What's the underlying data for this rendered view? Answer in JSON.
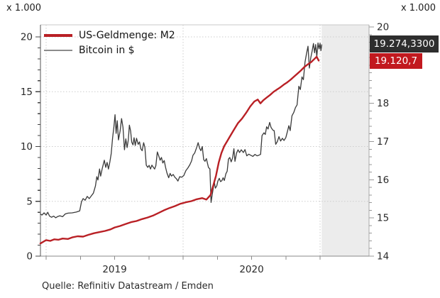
{
  "units": {
    "left": "x 1.000",
    "right": "x 1.000"
  },
  "legend": [
    {
      "label": "US-Geldmenge: M2",
      "swatch_color": "#b92025",
      "swatch_thickness": 4
    },
    {
      "label": "Bitcoin in $",
      "swatch_color": "#8c8c8c",
      "swatch_thickness": 2
    }
  ],
  "badges": [
    {
      "series": "Bitcoin in $",
      "value": "19.274,3300",
      "bg": "#2e2e2e"
    },
    {
      "series": "US-Geldmenge: M2",
      "value": "19.120,7",
      "bg": "#c2191f"
    }
  ],
  "source": "Quelle: Refinitiv Datastream / Emden",
  "chart_data": {
    "type": "line",
    "title": "",
    "x_axis": {
      "year_labels": [
        {
          "label": "2019",
          "t_center": 2019.5
        },
        {
          "label": "2020",
          "t_center": 2020.5
        }
      ],
      "year_starts": [
        2019,
        2020,
        2021
      ],
      "quarter_tick_step": 0.25,
      "range": [
        2018.958,
        2021.36
      ]
    },
    "left_axis": {
      "unit": "x 1.000",
      "series": "Bitcoin in $",
      "range": [
        0,
        20
      ],
      "major_ticks": [
        0,
        5,
        10,
        15,
        20
      ],
      "grid_values": [
        5,
        10,
        15,
        20
      ],
      "minor_step": 1
    },
    "right_axis": {
      "unit": "x 1.000",
      "series": "US-Geldmenge: M2",
      "range": [
        14,
        20
      ],
      "major_ticks": [
        14,
        15,
        16,
        17,
        18,
        19,
        20
      ],
      "minor_step": 0.2
    },
    "plot": {
      "grid_color": "#cdcdcd",
      "shade_color": "#ececec",
      "no_data_shade_from": 2021.012
    },
    "series": [
      {
        "name": "US-Geldmenge: M2",
        "axis": "right",
        "color": "#b92025",
        "width": 2.4,
        "data_name": "m2-series-line",
        "last_value_label": "19.120,7",
        "points": [
          [
            2018.958,
            14.33
          ],
          [
            2019.0,
            14.42
          ],
          [
            2019.03,
            14.4
          ],
          [
            2019.06,
            14.44
          ],
          [
            2019.09,
            14.43
          ],
          [
            2019.12,
            14.46
          ],
          [
            2019.16,
            14.45
          ],
          [
            2019.19,
            14.49
          ],
          [
            2019.23,
            14.52
          ],
          [
            2019.27,
            14.51
          ],
          [
            2019.31,
            14.56
          ],
          [
            2019.35,
            14.6
          ],
          [
            2019.39,
            14.63
          ],
          [
            2019.43,
            14.66
          ],
          [
            2019.47,
            14.7
          ],
          [
            2019.5,
            14.75
          ],
          [
            2019.54,
            14.79
          ],
          [
            2019.58,
            14.84
          ],
          [
            2019.62,
            14.89
          ],
          [
            2019.66,
            14.92
          ],
          [
            2019.7,
            14.97
          ],
          [
            2019.74,
            15.01
          ],
          [
            2019.78,
            15.06
          ],
          [
            2019.82,
            15.13
          ],
          [
            2019.86,
            15.2
          ],
          [
            2019.9,
            15.26
          ],
          [
            2019.94,
            15.31
          ],
          [
            2019.98,
            15.37
          ],
          [
            2020.02,
            15.41
          ],
          [
            2020.06,
            15.44
          ],
          [
            2020.1,
            15.49
          ],
          [
            2020.14,
            15.52
          ],
          [
            2020.17,
            15.48
          ],
          [
            2020.2,
            15.6
          ],
          [
            2020.22,
            15.85
          ],
          [
            2020.24,
            16.1
          ],
          [
            2020.26,
            16.45
          ],
          [
            2020.28,
            16.7
          ],
          [
            2020.3,
            16.88
          ],
          [
            2020.32,
            17.0
          ],
          [
            2020.34,
            17.12
          ],
          [
            2020.37,
            17.3
          ],
          [
            2020.4,
            17.48
          ],
          [
            2020.43,
            17.6
          ],
          [
            2020.46,
            17.75
          ],
          [
            2020.49,
            17.92
          ],
          [
            2020.52,
            18.05
          ],
          [
            2020.545,
            18.1
          ],
          [
            2020.565,
            18.0
          ],
          [
            2020.585,
            18.08
          ],
          [
            2020.61,
            18.15
          ],
          [
            2020.635,
            18.22
          ],
          [
            2020.66,
            18.3
          ],
          [
            2020.685,
            18.36
          ],
          [
            2020.71,
            18.42
          ],
          [
            2020.735,
            18.49
          ],
          [
            2020.76,
            18.55
          ],
          [
            2020.785,
            18.62
          ],
          [
            2020.81,
            18.7
          ],
          [
            2020.835,
            18.78
          ],
          [
            2020.86,
            18.86
          ],
          [
            2020.885,
            18.95
          ],
          [
            2020.91,
            19.02
          ],
          [
            2020.935,
            19.08
          ],
          [
            2020.955,
            19.15
          ],
          [
            2020.975,
            19.22
          ],
          [
            2020.99,
            19.12
          ]
        ]
      },
      {
        "name": "Bitcoin in $",
        "axis": "left",
        "color": "#3a3a3a",
        "width": 1.3,
        "data_name": "bitcoin-series-line",
        "last_value_label": "19.274,3300",
        "points": [
          [
            2018.958,
            3.85
          ],
          [
            2018.97,
            3.75
          ],
          [
            2018.985,
            3.95
          ],
          [
            2019.0,
            3.75
          ],
          [
            2019.012,
            4.0
          ],
          [
            2019.025,
            3.65
          ],
          [
            2019.04,
            3.55
          ],
          [
            2019.055,
            3.65
          ],
          [
            2019.07,
            3.5
          ],
          [
            2019.085,
            3.62
          ],
          [
            2019.1,
            3.68
          ],
          [
            2019.12,
            3.6
          ],
          [
            2019.14,
            3.85
          ],
          [
            2019.16,
            3.92
          ],
          [
            2019.19,
            3.95
          ],
          [
            2019.22,
            4.02
          ],
          [
            2019.245,
            4.12
          ],
          [
            2019.258,
            4.95
          ],
          [
            2019.27,
            5.25
          ],
          [
            2019.285,
            5.1
          ],
          [
            2019.3,
            5.45
          ],
          [
            2019.315,
            5.25
          ],
          [
            2019.33,
            5.5
          ],
          [
            2019.345,
            5.75
          ],
          [
            2019.36,
            6.4
          ],
          [
            2019.37,
            7.25
          ],
          [
            2019.378,
            6.95
          ],
          [
            2019.39,
            7.95
          ],
          [
            2019.398,
            7.3
          ],
          [
            2019.41,
            8.0
          ],
          [
            2019.425,
            8.75
          ],
          [
            2019.435,
            8.1
          ],
          [
            2019.445,
            8.55
          ],
          [
            2019.455,
            7.95
          ],
          [
            2019.465,
            8.55
          ],
          [
            2019.475,
            9.35
          ],
          [
            2019.485,
            10.75
          ],
          [
            2019.495,
            11.8
          ],
          [
            2019.503,
            12.9
          ],
          [
            2019.511,
            11.2
          ],
          [
            2019.519,
            12.35
          ],
          [
            2019.528,
            10.6
          ],
          [
            2019.54,
            11.4
          ],
          [
            2019.551,
            12.55
          ],
          [
            2019.561,
            11.75
          ],
          [
            2019.572,
            9.7
          ],
          [
            2019.582,
            10.7
          ],
          [
            2019.591,
            9.9
          ],
          [
            2019.6,
            10.6
          ],
          [
            2019.608,
            11.95
          ],
          [
            2019.617,
            11.4
          ],
          [
            2019.625,
            10.4
          ],
          [
            2019.634,
            10.15
          ],
          [
            2019.642,
            10.8
          ],
          [
            2019.651,
            10.1
          ],
          [
            2019.66,
            10.75
          ],
          [
            2019.672,
            10.2
          ],
          [
            2019.682,
            10.42
          ],
          [
            2019.691,
            9.8
          ],
          [
            2019.701,
            9.62
          ],
          [
            2019.712,
            10.35
          ],
          [
            2019.721,
            9.9
          ],
          [
            2019.731,
            8.3
          ],
          [
            2019.742,
            8.1
          ],
          [
            2019.752,
            8.28
          ],
          [
            2019.762,
            7.95
          ],
          [
            2019.772,
            8.3
          ],
          [
            2019.782,
            8.12
          ],
          [
            2019.792,
            7.95
          ],
          [
            2019.801,
            8.25
          ],
          [
            2019.812,
            9.5
          ],
          [
            2019.822,
            9.15
          ],
          [
            2019.832,
            8.75
          ],
          [
            2019.842,
            9.0
          ],
          [
            2019.852,
            8.5
          ],
          [
            2019.862,
            8.72
          ],
          [
            2019.872,
            8.1
          ],
          [
            2019.882,
            7.6
          ],
          [
            2019.895,
            7.15
          ],
          [
            2019.905,
            7.55
          ],
          [
            2019.915,
            7.3
          ],
          [
            2019.928,
            7.45
          ],
          [
            2019.94,
            7.2
          ],
          [
            2019.952,
            7.05
          ],
          [
            2019.962,
            6.85
          ],
          [
            2019.975,
            7.25
          ],
          [
            2019.99,
            7.2
          ],
          [
            2020.005,
            7.35
          ],
          [
            2020.02,
            7.8
          ],
          [
            2020.035,
            8.05
          ],
          [
            2020.05,
            8.35
          ],
          [
            2020.062,
            8.7
          ],
          [
            2020.072,
            9.2
          ],
          [
            2020.085,
            9.42
          ],
          [
            2020.1,
            9.95
          ],
          [
            2020.11,
            10.35
          ],
          [
            2020.12,
            9.85
          ],
          [
            2020.13,
            9.62
          ],
          [
            2020.14,
            10.0
          ],
          [
            2020.15,
            8.8
          ],
          [
            2020.16,
            8.65
          ],
          [
            2020.17,
            8.9
          ],
          [
            2020.185,
            8.1
          ],
          [
            2020.196,
            7.95
          ],
          [
            2020.204,
            4.9
          ],
          [
            2020.212,
            5.55
          ],
          [
            2020.22,
            6.2
          ],
          [
            2020.228,
            6.75
          ],
          [
            2020.236,
            6.2
          ],
          [
            2020.246,
            6.42
          ],
          [
            2020.254,
            6.85
          ],
          [
            2020.264,
            7.1
          ],
          [
            2020.273,
            6.8
          ],
          [
            2020.283,
            6.88
          ],
          [
            2020.292,
            7.15
          ],
          [
            2020.301,
            6.9
          ],
          [
            2020.312,
            7.5
          ],
          [
            2020.322,
            7.75
          ],
          [
            2020.331,
            8.85
          ],
          [
            2020.341,
            9.0
          ],
          [
            2020.351,
            8.6
          ],
          [
            2020.361,
            8.95
          ],
          [
            2020.371,
            9.8
          ],
          [
            2020.379,
            8.65
          ],
          [
            2020.39,
            9.4
          ],
          [
            2020.401,
            9.7
          ],
          [
            2020.412,
            9.45
          ],
          [
            2020.425,
            9.7
          ],
          [
            2020.44,
            9.45
          ],
          [
            2020.452,
            9.72
          ],
          [
            2020.465,
            9.15
          ],
          [
            2020.48,
            9.3
          ],
          [
            2020.495,
            9.2
          ],
          [
            2020.51,
            9.1
          ],
          [
            2020.525,
            9.28
          ],
          [
            2020.54,
            9.15
          ],
          [
            2020.555,
            9.22
          ],
          [
            2020.566,
            9.28
          ],
          [
            2020.576,
            11.0
          ],
          [
            2020.59,
            11.25
          ],
          [
            2020.6,
            11.1
          ],
          [
            2020.61,
            11.8
          ],
          [
            2020.62,
            11.6
          ],
          [
            2020.632,
            12.2
          ],
          [
            2020.642,
            11.75
          ],
          [
            2020.655,
            11.5
          ],
          [
            2020.665,
            11.45
          ],
          [
            2020.676,
            10.2
          ],
          [
            2020.688,
            10.45
          ],
          [
            2020.7,
            10.9
          ],
          [
            2020.712,
            10.5
          ],
          [
            2020.725,
            10.75
          ],
          [
            2020.737,
            10.55
          ],
          [
            2020.75,
            10.82
          ],
          [
            2020.762,
            11.4
          ],
          [
            2020.772,
            11.9
          ],
          [
            2020.782,
            11.45
          ],
          [
            2020.795,
            12.8
          ],
          [
            2020.808,
            13.1
          ],
          [
            2020.82,
            13.55
          ],
          [
            2020.832,
            13.8
          ],
          [
            2020.845,
            15.5
          ],
          [
            2020.856,
            15.2
          ],
          [
            2020.868,
            16.35
          ],
          [
            2020.878,
            16.1
          ],
          [
            2020.89,
            17.7
          ],
          [
            2020.9,
            18.4
          ],
          [
            2020.912,
            19.15
          ],
          [
            2020.922,
            17.15
          ],
          [
            2020.932,
            18.1
          ],
          [
            2020.942,
            18.7
          ],
          [
            2020.952,
            19.4
          ],
          [
            2020.96,
            18.55
          ],
          [
            2020.968,
            19.3
          ],
          [
            2020.976,
            18.2
          ],
          [
            2020.985,
            19.45
          ],
          [
            2020.993,
            18.9
          ],
          [
            2021.0,
            19.42
          ],
          [
            2021.006,
            18.75
          ],
          [
            2021.012,
            19.274
          ]
        ]
      }
    ]
  }
}
